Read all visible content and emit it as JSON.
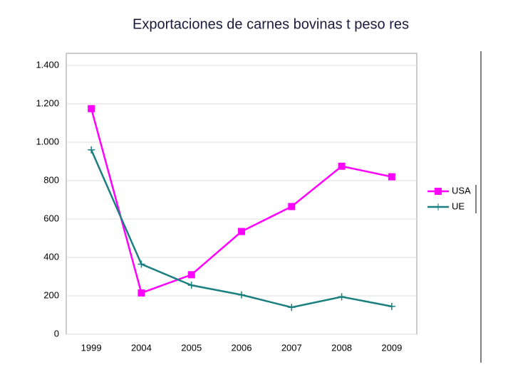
{
  "chart_data": {
    "type": "line",
    "title": "Exportaciones de carnes bovinas t peso res",
    "categories": [
      "1999",
      "2004",
      "2005",
      "2006",
      "2007",
      "2008",
      "2009"
    ],
    "series": [
      {
        "name": "USA",
        "color": "#ff00ff",
        "marker": "square",
        "values": [
          1175,
          215,
          310,
          535,
          665,
          875,
          820
        ]
      },
      {
        "name": "UE",
        "color": "#1a7f7f",
        "marker": "plus",
        "values": [
          960,
          365,
          255,
          205,
          140,
          195,
          145
        ]
      }
    ],
    "ylim": [
      0,
      1400
    ],
    "yticks": [
      0,
      200,
      400,
      600,
      800,
      {
        "value": 1000,
        "label": "1.000"
      },
      {
        "value": 1200,
        "label": "1.200"
      },
      {
        "value": 1400,
        "label": "1.400"
      }
    ],
    "grid": true,
    "legend": "right"
  }
}
